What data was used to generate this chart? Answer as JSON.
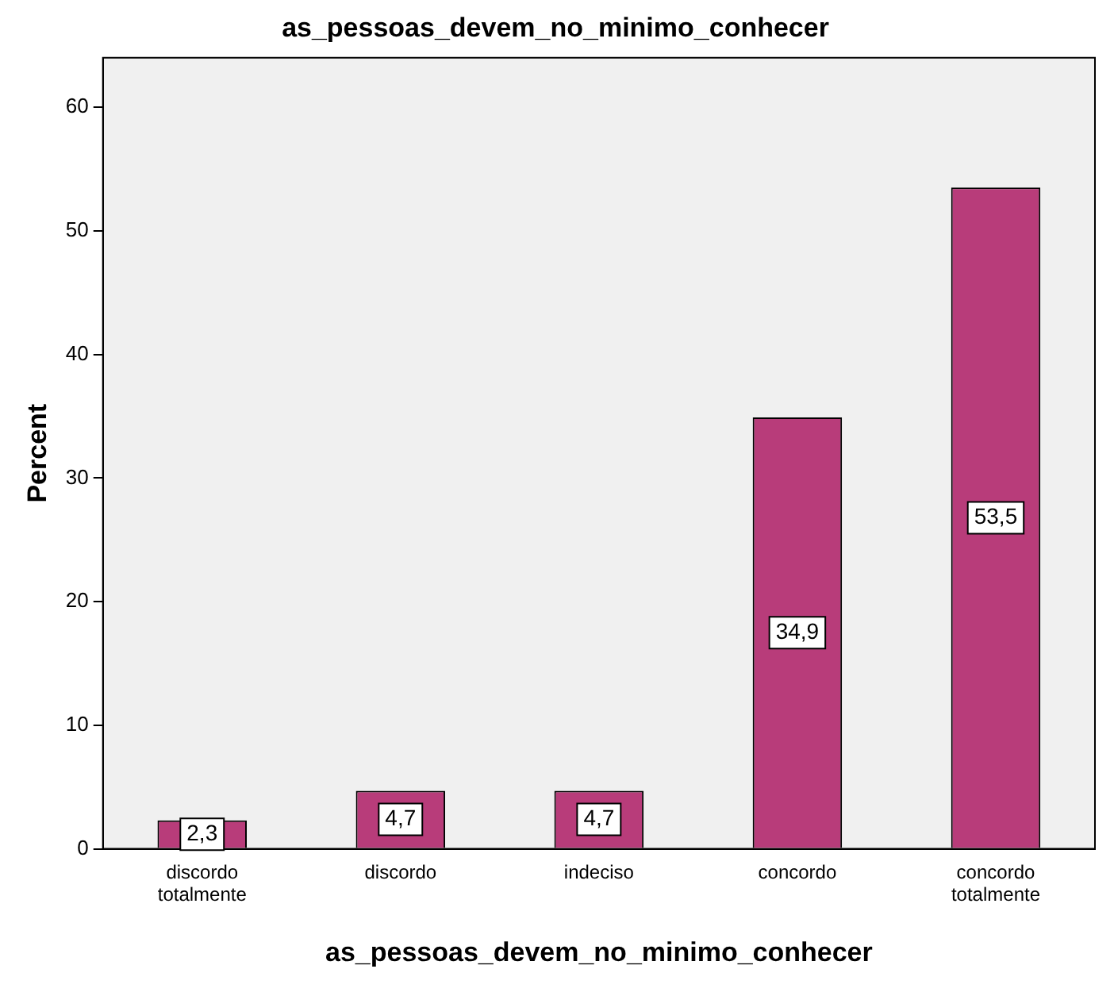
{
  "chart_data": {
    "type": "bar",
    "title": "as_pessoas_devem_no_minimo_conhecer",
    "xlabel": "as_pessoas_devem_no_minimo_conhecer",
    "ylabel": "Percent",
    "categories": [
      "discordo totalmente",
      "discordo",
      "indeciso",
      "concordo",
      "concordo totalmente"
    ],
    "values": [
      2.3,
      4.7,
      4.7,
      34.9,
      53.5
    ],
    "value_labels": [
      "2,3",
      "4,7",
      "4,7",
      "34,9",
      "53,5"
    ],
    "color": "#b83c7a",
    "ylim": [
      0,
      64
    ],
    "yticks": [
      0,
      10,
      20,
      30,
      40,
      50,
      60
    ],
    "grid": false,
    "legend": false
  }
}
